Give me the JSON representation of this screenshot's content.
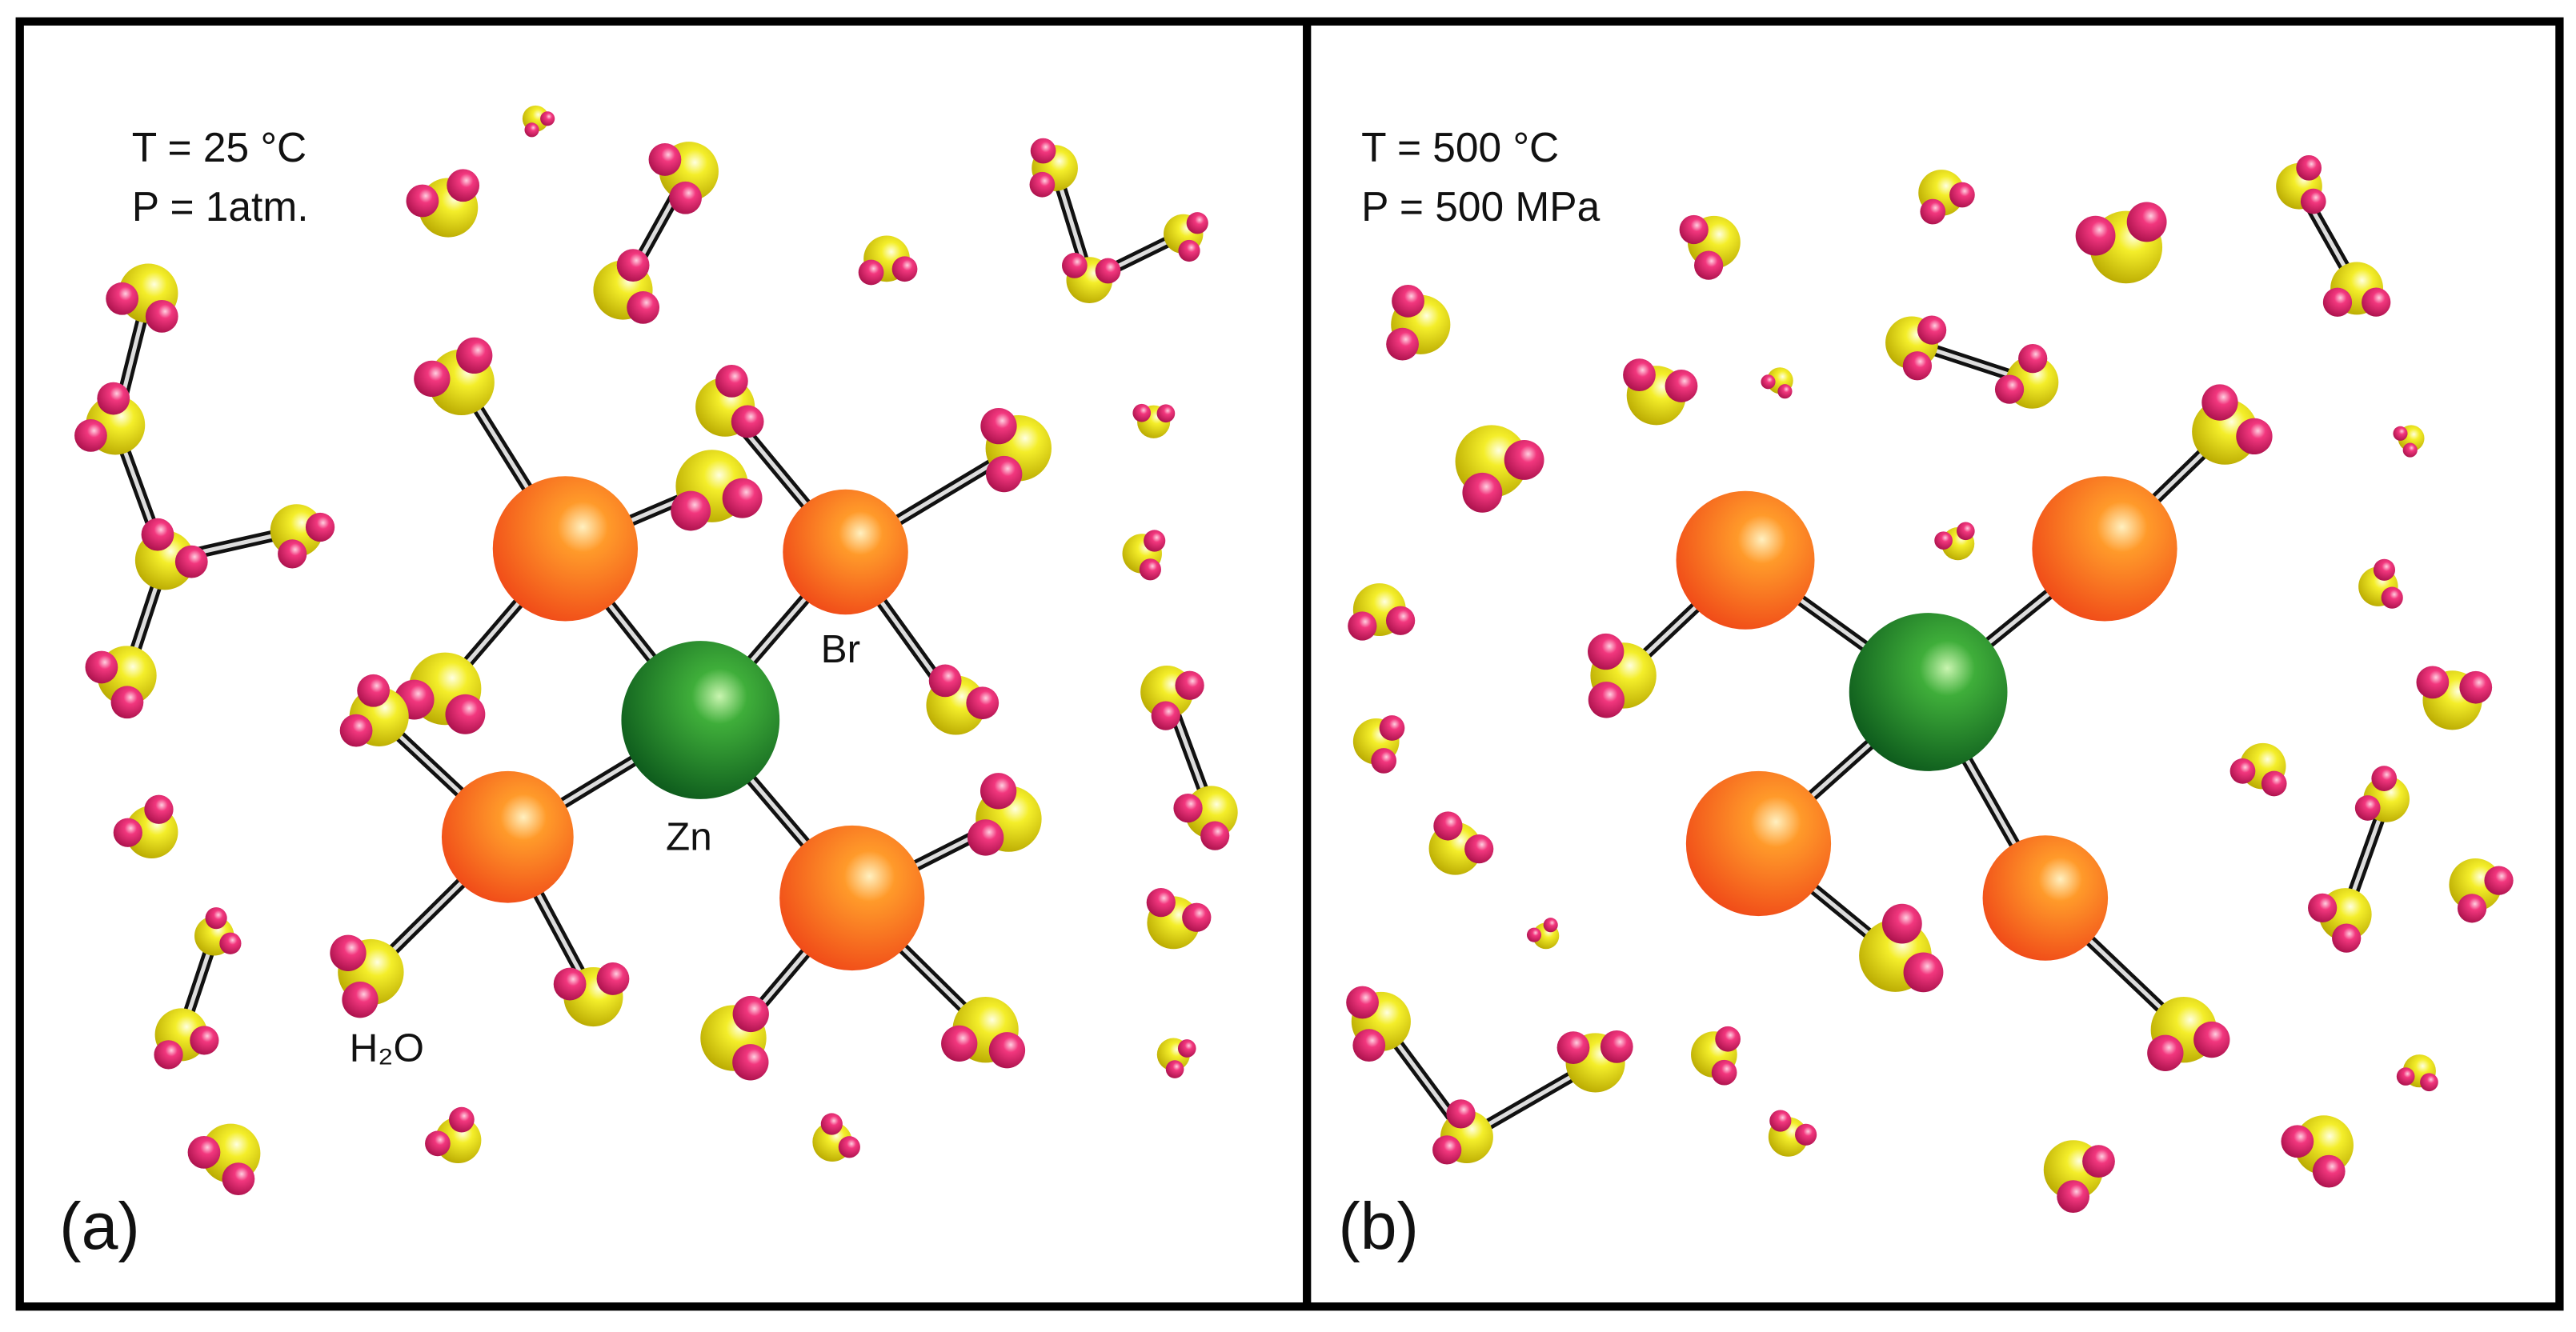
{
  "panels": [
    {
      "label": "(a)",
      "conditions": [
        "T = 25 °C",
        "P = 1atm."
      ],
      "atom_labels": [
        "Br",
        "Zn",
        "H₂O"
      ]
    },
    {
      "label": "(b)",
      "conditions": [
        "T = 500 °C",
        "P = 500 MPa"
      ]
    }
  ]
}
